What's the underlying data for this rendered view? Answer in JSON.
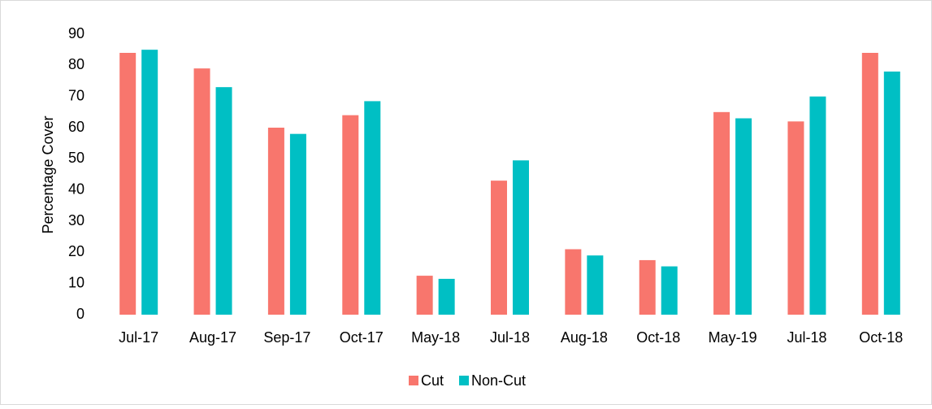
{
  "chart_data": {
    "type": "bar",
    "y_label": "Percentage Cover",
    "categories": [
      "Jul-17",
      "Aug-17",
      "Sep-17",
      "Oct-17",
      "May-18",
      "Jul-18",
      "Aug-18",
      "Oct-18",
      "May-19",
      "Jul-18",
      "Oct-18"
    ],
    "series": [
      {
        "name": "Cut",
        "color": "#f8766d",
        "values": [
          84,
          79,
          60,
          64,
          12.5,
          43,
          21,
          17.5,
          65,
          62,
          84
        ]
      },
      {
        "name": "Non-Cut",
        "color": "#00bfc4",
        "values": [
          85,
          73,
          58,
          68.5,
          11.5,
          49.5,
          19,
          15.5,
          63,
          70,
          78
        ]
      }
    ],
    "ylim": [
      0,
      90
    ],
    "yticks": [
      0,
      10,
      20,
      30,
      40,
      50,
      60,
      70,
      80,
      90
    ],
    "legend": "bottom"
  }
}
